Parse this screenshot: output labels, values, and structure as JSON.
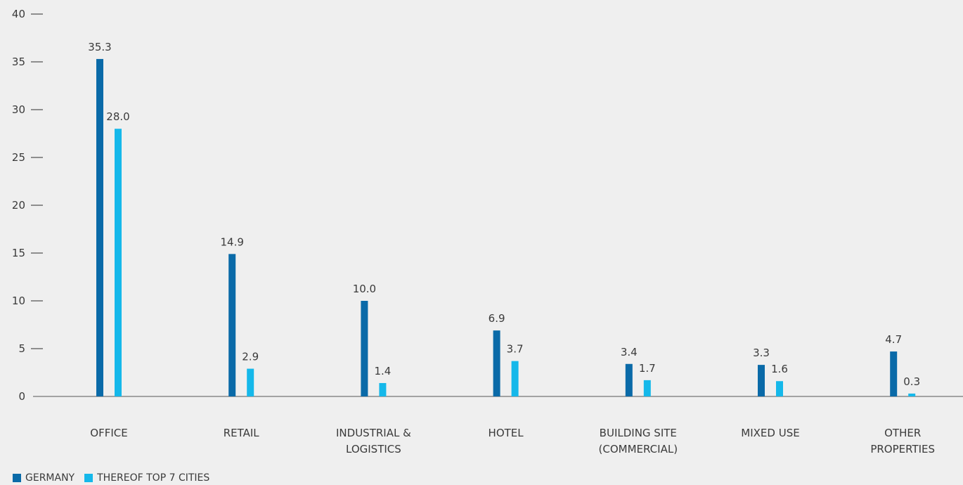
{
  "chart_data": {
    "type": "bar",
    "categories": [
      [
        "OFFICE"
      ],
      [
        "RETAIL"
      ],
      [
        "INDUSTRIAL &",
        "LOGISTICS"
      ],
      [
        "HOTEL"
      ],
      [
        "BUILDING SITE",
        "(COMMERCIAL)"
      ],
      [
        "MIXED USE"
      ],
      [
        "OTHER",
        "PROPERTIES"
      ]
    ],
    "series": [
      {
        "name": "GERMANY",
        "color": "#0a6aa8",
        "values": [
          35.3,
          14.9,
          10.0,
          6.9,
          3.4,
          3.3,
          4.7
        ],
        "labels": [
          "35.3",
          "14.9",
          "10.0",
          "6.9",
          "3.4",
          "3.3",
          "4.7"
        ]
      },
      {
        "name": "THEREOF TOP 7 CITIES",
        "color": "#15b8ea",
        "values": [
          28.0,
          2.9,
          1.4,
          3.7,
          1.7,
          1.6,
          0.3
        ],
        "labels": [
          "28.0",
          "2.9",
          "1.4",
          "3.7",
          "1.7",
          "1.6",
          "0.3"
        ]
      }
    ],
    "ylim": [
      0,
      40
    ],
    "yticks": [
      "0",
      "5",
      "10",
      "15",
      "20",
      "25",
      "30",
      "35",
      "40"
    ],
    "legend_position": "bottom-left",
    "grid": false
  }
}
